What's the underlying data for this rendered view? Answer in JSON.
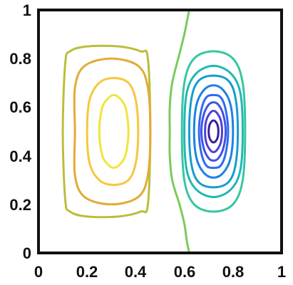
{
  "chart_data": {
    "type": "line",
    "subtype": "contour",
    "title": "",
    "xlabel": "",
    "ylabel": "",
    "xlim": [
      0,
      1
    ],
    "ylim": [
      0,
      1
    ],
    "x_ticks": [
      "0",
      "0.2",
      "0.4",
      "0.6",
      "0.8",
      "1"
    ],
    "y_ticks": [
      "0",
      "0.2",
      "0.4",
      "0.6",
      "0.8",
      "1"
    ],
    "grid": false,
    "legend": "none",
    "colormap": "parula",
    "series": [
      {
        "color": "#b9bf3a",
        "points": [
          [
            0.1,
            0.5
          ],
          [
            0.11,
            0.78
          ],
          [
            0.13,
            0.83
          ],
          [
            0.2,
            0.85
          ],
          [
            0.33,
            0.85
          ],
          [
            0.42,
            0.83
          ],
          [
            0.45,
            0.8
          ],
          [
            0.46,
            0.5
          ],
          [
            0.45,
            0.2
          ],
          [
            0.42,
            0.17
          ],
          [
            0.33,
            0.15
          ],
          [
            0.2,
            0.15
          ],
          [
            0.13,
            0.17
          ],
          [
            0.11,
            0.22
          ]
        ]
      },
      {
        "color": "#e2ab35",
        "points": [
          [
            0.15,
            0.5
          ],
          [
            0.15,
            0.68
          ],
          [
            0.19,
            0.77
          ],
          [
            0.3,
            0.8
          ],
          [
            0.41,
            0.77
          ],
          [
            0.45,
            0.68
          ],
          [
            0.46,
            0.5
          ],
          [
            0.45,
            0.32
          ],
          [
            0.41,
            0.23
          ],
          [
            0.3,
            0.2
          ],
          [
            0.19,
            0.23
          ],
          [
            0.15,
            0.32
          ]
        ]
      },
      {
        "color": "#f6c83a",
        "points": [
          [
            0.2,
            0.5
          ],
          [
            0.21,
            0.63
          ],
          [
            0.25,
            0.7
          ],
          [
            0.31,
            0.72
          ],
          [
            0.37,
            0.7
          ],
          [
            0.4,
            0.63
          ],
          [
            0.41,
            0.5
          ],
          [
            0.4,
            0.37
          ],
          [
            0.37,
            0.3
          ],
          [
            0.31,
            0.28
          ],
          [
            0.25,
            0.3
          ],
          [
            0.21,
            0.37
          ]
        ]
      },
      {
        "color": "#f2e43a",
        "points": [
          [
            0.25,
            0.5
          ],
          [
            0.26,
            0.59
          ],
          [
            0.28,
            0.63
          ],
          [
            0.31,
            0.65
          ],
          [
            0.34,
            0.63
          ],
          [
            0.36,
            0.59
          ],
          [
            0.37,
            0.5
          ],
          [
            0.36,
            0.41
          ],
          [
            0.34,
            0.37
          ],
          [
            0.31,
            0.35
          ],
          [
            0.28,
            0.37
          ],
          [
            0.26,
            0.41
          ]
        ]
      },
      {
        "color": "#7acb5c",
        "closed": false,
        "points": [
          [
            0.62,
            1.0
          ],
          [
            0.61,
            0.95
          ],
          [
            0.6,
            0.9
          ],
          [
            0.58,
            0.82
          ],
          [
            0.55,
            0.7
          ],
          [
            0.54,
            0.6
          ],
          [
            0.54,
            0.5
          ],
          [
            0.54,
            0.4
          ],
          [
            0.55,
            0.3
          ],
          [
            0.58,
            0.2
          ],
          [
            0.6,
            0.12
          ],
          [
            0.61,
            0.05
          ],
          [
            0.62,
            0.0
          ]
        ]
      },
      {
        "color": "#37c6a0",
        "points": [
          [
            0.59,
            0.5
          ],
          [
            0.6,
            0.7
          ],
          [
            0.64,
            0.8
          ],
          [
            0.72,
            0.83
          ],
          [
            0.8,
            0.8
          ],
          [
            0.84,
            0.7
          ],
          [
            0.85,
            0.5
          ],
          [
            0.84,
            0.3
          ],
          [
            0.8,
            0.2
          ],
          [
            0.72,
            0.17
          ],
          [
            0.64,
            0.2
          ],
          [
            0.6,
            0.3
          ]
        ]
      },
      {
        "color": "#1fb8b5",
        "points": [
          [
            0.6,
            0.5
          ],
          [
            0.61,
            0.66
          ],
          [
            0.65,
            0.74
          ],
          [
            0.72,
            0.77
          ],
          [
            0.79,
            0.74
          ],
          [
            0.83,
            0.66
          ],
          [
            0.84,
            0.5
          ],
          [
            0.83,
            0.34
          ],
          [
            0.79,
            0.26
          ],
          [
            0.72,
            0.23
          ],
          [
            0.65,
            0.26
          ],
          [
            0.61,
            0.34
          ]
        ]
      },
      {
        "color": "#169dcf",
        "points": [
          [
            0.62,
            0.5
          ],
          [
            0.63,
            0.64
          ],
          [
            0.66,
            0.71
          ],
          [
            0.72,
            0.73
          ],
          [
            0.78,
            0.71
          ],
          [
            0.81,
            0.64
          ],
          [
            0.82,
            0.5
          ],
          [
            0.81,
            0.36
          ],
          [
            0.78,
            0.29
          ],
          [
            0.72,
            0.27
          ],
          [
            0.66,
            0.29
          ],
          [
            0.63,
            0.36
          ]
        ]
      },
      {
        "color": "#1e83e3",
        "points": [
          [
            0.64,
            0.5
          ],
          [
            0.65,
            0.61
          ],
          [
            0.68,
            0.67
          ],
          [
            0.72,
            0.69
          ],
          [
            0.76,
            0.67
          ],
          [
            0.79,
            0.61
          ],
          [
            0.8,
            0.5
          ],
          [
            0.79,
            0.39
          ],
          [
            0.76,
            0.33
          ],
          [
            0.72,
            0.31
          ],
          [
            0.68,
            0.33
          ],
          [
            0.65,
            0.39
          ]
        ]
      },
      {
        "color": "#2f6bee",
        "points": [
          [
            0.66,
            0.5
          ],
          [
            0.67,
            0.59
          ],
          [
            0.69,
            0.64
          ],
          [
            0.72,
            0.65
          ],
          [
            0.75,
            0.64
          ],
          [
            0.77,
            0.59
          ],
          [
            0.78,
            0.5
          ],
          [
            0.77,
            0.41
          ],
          [
            0.75,
            0.36
          ],
          [
            0.72,
            0.35
          ],
          [
            0.69,
            0.36
          ],
          [
            0.67,
            0.41
          ]
        ]
      },
      {
        "color": "#4152e6",
        "points": [
          [
            0.67,
            0.5
          ],
          [
            0.68,
            0.57
          ],
          [
            0.7,
            0.61
          ],
          [
            0.72,
            0.62
          ],
          [
            0.74,
            0.61
          ],
          [
            0.76,
            0.57
          ],
          [
            0.77,
            0.5
          ],
          [
            0.76,
            0.43
          ],
          [
            0.74,
            0.39
          ],
          [
            0.72,
            0.38
          ],
          [
            0.7,
            0.39
          ],
          [
            0.68,
            0.43
          ]
        ]
      },
      {
        "color": "#4f40d6",
        "points": [
          [
            0.685,
            0.5
          ],
          [
            0.69,
            0.545
          ],
          [
            0.705,
            0.575
          ],
          [
            0.72,
            0.585
          ],
          [
            0.735,
            0.575
          ],
          [
            0.75,
            0.545
          ],
          [
            0.755,
            0.5
          ],
          [
            0.75,
            0.455
          ],
          [
            0.735,
            0.425
          ],
          [
            0.72,
            0.415
          ],
          [
            0.705,
            0.425
          ],
          [
            0.69,
            0.455
          ]
        ]
      },
      {
        "color": "#3a1f9e",
        "points": [
          [
            0.7,
            0.5
          ],
          [
            0.703,
            0.525
          ],
          [
            0.711,
            0.54
          ],
          [
            0.72,
            0.545
          ],
          [
            0.729,
            0.54
          ],
          [
            0.737,
            0.525
          ],
          [
            0.74,
            0.5
          ],
          [
            0.737,
            0.475
          ],
          [
            0.729,
            0.46
          ],
          [
            0.72,
            0.455
          ],
          [
            0.711,
            0.46
          ],
          [
            0.703,
            0.475
          ]
        ]
      }
    ]
  }
}
